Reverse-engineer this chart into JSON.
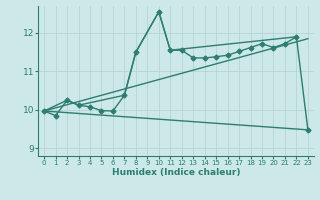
{
  "xlabel": "Humidex (Indice chaleur)",
  "xlim": [
    -0.5,
    23.5
  ],
  "ylim": [
    8.8,
    12.7
  ],
  "xticks": [
    0,
    1,
    2,
    3,
    4,
    5,
    6,
    7,
    8,
    9,
    10,
    11,
    12,
    13,
    14,
    15,
    16,
    17,
    18,
    19,
    20,
    21,
    22,
    23
  ],
  "yticks": [
    9,
    10,
    11,
    12
  ],
  "color": "#2e7d6e",
  "bg_color": "#cce8e8",
  "grid_color": "#b0d0d0",
  "line1_x": [
    0,
    1,
    2,
    3,
    4,
    5,
    6,
    7,
    8,
    10,
    11,
    12,
    13,
    14,
    15,
    16,
    17,
    18,
    19,
    20,
    21,
    22,
    23
  ],
  "line1_y": [
    9.97,
    9.85,
    10.25,
    10.12,
    10.08,
    9.98,
    9.97,
    10.38,
    11.5,
    12.55,
    11.55,
    11.55,
    11.35,
    11.35,
    11.38,
    11.42,
    11.52,
    11.62,
    11.72,
    11.62,
    11.72,
    11.9,
    9.48
  ],
  "line2_x": [
    0,
    2,
    3,
    7,
    8,
    10,
    11,
    22
  ],
  "line2_y": [
    9.97,
    10.25,
    10.12,
    10.38,
    11.5,
    12.55,
    11.55,
    11.9
  ],
  "line3_x": [
    0,
    23
  ],
  "line3_y": [
    9.97,
    11.85
  ],
  "line4_x": [
    0,
    23
  ],
  "line4_y": [
    9.97,
    9.48
  ],
  "marker": "D",
  "markersize": 2.5,
  "linewidth": 1.0
}
